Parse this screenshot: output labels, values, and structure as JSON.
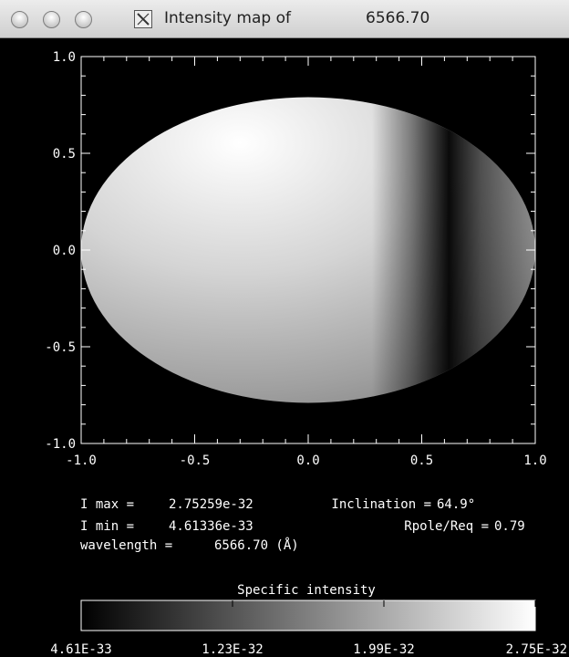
{
  "window": {
    "title": "Intensity map of",
    "title_value": "6566.70",
    "buttons": [
      "close-button",
      "minimize-button",
      "zoom-button"
    ]
  },
  "chart_data": {
    "type": "heatmap",
    "title": "",
    "xlabel": "",
    "ylabel": "",
    "xlim": [
      -1.0,
      1.0
    ],
    "ylim": [
      -1.0,
      1.0
    ],
    "x_ticks": [
      "-1.0",
      "-0.5",
      "0.0",
      "0.5",
      "1.0"
    ],
    "y_ticks": [
      "1.0",
      "0.5",
      "0.0",
      "-0.5",
      "-1.0"
    ],
    "shape": {
      "form": "ellipse",
      "center": [
        0,
        0
      ],
      "semi_x": 1.0,
      "semi_y": 0.79
    },
    "colorscale": "grayscale",
    "dark_band_center_x": 0.8
  },
  "info": {
    "imax_label": "I max =",
    "imax_value": "2.75259e-32",
    "imin_label": "I min =",
    "imin_value": "4.61336e-33",
    "wavelength_label": "wavelength =",
    "wavelength_value": "6566.70 (Å)",
    "inclination_label": "Inclination =",
    "inclination_value": "64.9°",
    "rpole_label": "Rpole/Req =",
    "rpole_value": "0.79"
  },
  "colorbar": {
    "title": "Specific intensity",
    "labels": [
      "4.61E-33",
      "1.23E-32",
      "1.99E-32",
      "2.75E-32"
    ]
  }
}
